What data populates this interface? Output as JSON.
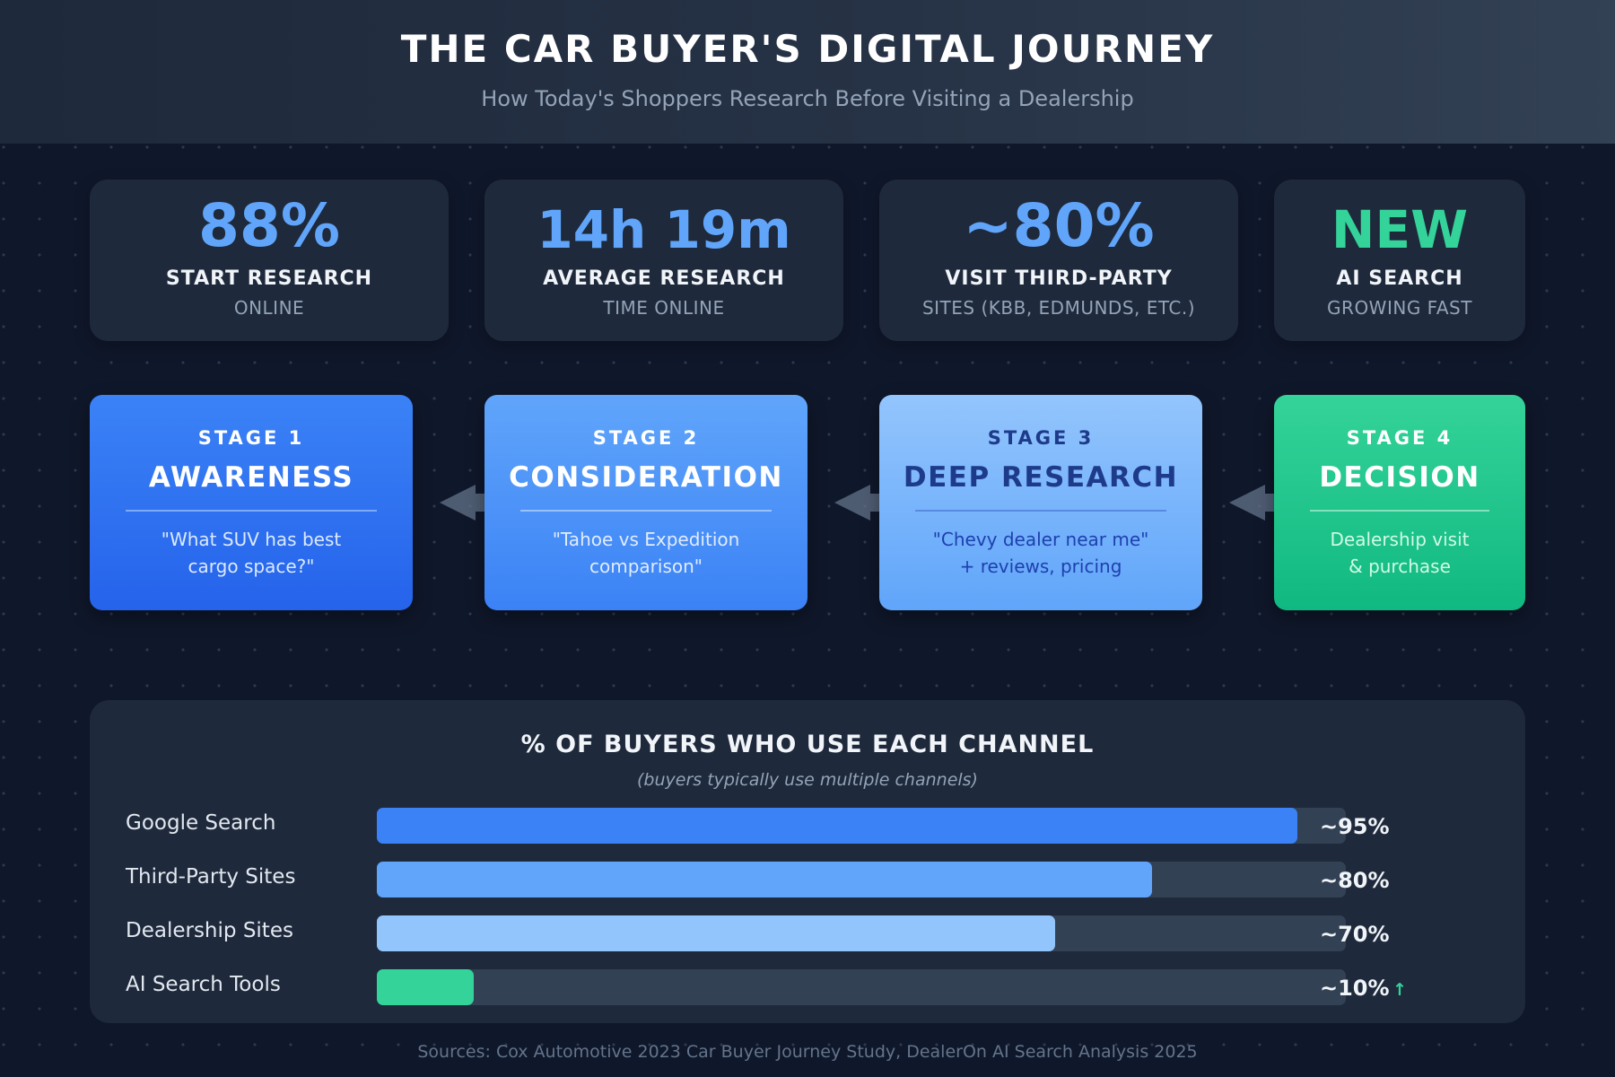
{
  "header": {
    "title": "THE CAR BUYER'S DIGITAL JOURNEY",
    "subtitle": "How Today's Shoppers Research Before Visiting a Dealership"
  },
  "stats": [
    {
      "value": "88%",
      "label": "START RESEARCH",
      "sub": "ONLINE",
      "color": "#60a5fa"
    },
    {
      "value": "14h 19m",
      "label": "AVERAGE RESEARCH",
      "sub": "TIME ONLINE",
      "color": "#60a5fa"
    },
    {
      "value": "~80%",
      "label": "VISIT THIRD-PARTY",
      "sub": "SITES (KBB, EDMUNDS, ETC.)",
      "color": "#60a5fa"
    },
    {
      "value": "NEW",
      "label": "AI SEARCH",
      "sub": "GROWING FAST",
      "color": "#34d399"
    }
  ],
  "stages": [
    {
      "stage": "STAGE 1",
      "name": "AWARENESS",
      "desc_line1": "\"What SUV has best",
      "desc_line2": "cargo space?\""
    },
    {
      "stage": "STAGE 2",
      "name": "CONSIDERATION",
      "desc_line1": "\"Tahoe vs Expedition",
      "desc_line2": "comparison\""
    },
    {
      "stage": "STAGE 3",
      "name": "DEEP RESEARCH",
      "desc_line1": "\"Chevy dealer near me\"",
      "desc_line2": "+ reviews, pricing"
    },
    {
      "stage": "STAGE 4",
      "name": "DECISION",
      "desc_line1": "Dealership visit",
      "desc_line2": "& purchase"
    }
  ],
  "flow_arrow_icon": "arrow-left-icon",
  "chart": {
    "title": "% OF BUYERS WHO USE EACH CHANNEL",
    "subtitle": "(buyers typically use multiple channels)",
    "rows": [
      {
        "label": "Google Search",
        "value_label": "~95%",
        "value": 95,
        "color": "#3b82f6",
        "trend": ""
      },
      {
        "label": "Third-Party Sites",
        "value_label": "~80%",
        "value": 80,
        "color": "#60a5fa",
        "trend": ""
      },
      {
        "label": "Dealership Sites",
        "value_label": "~70%",
        "value": 70,
        "color": "#93c5fd",
        "trend": ""
      },
      {
        "label": "AI Search Tools",
        "value_label": "~10%",
        "value": 10,
        "color": "#34d399",
        "trend": "↑"
      }
    ]
  },
  "chart_data": {
    "type": "bar",
    "orientation": "horizontal",
    "title": "% OF BUYERS WHO USE EACH CHANNEL",
    "subtitle": "(buyers typically use multiple channels)",
    "categories": [
      "Google Search",
      "Third-Party Sites",
      "Dealership Sites",
      "AI Search Tools"
    ],
    "values": [
      95,
      80,
      70,
      10
    ],
    "value_labels": [
      "~95%",
      "~80%",
      "~70%",
      "~10%"
    ],
    "colors": [
      "#3b82f6",
      "#60a5fa",
      "#93c5fd",
      "#34d399"
    ],
    "annotations": [
      "AI Search Tools: upward trend arrow ↑"
    ],
    "xlabel": "",
    "ylabel": "",
    "xlim": [
      0,
      100
    ],
    "grid": false,
    "legend": "none"
  },
  "footer": {
    "sources": "Sources: Cox Automotive 2023 Car Buyer Journey Study, DealerOn AI Search Analysis 2025"
  },
  "colors": {
    "background": "#0f172a",
    "panel": "#1e293b",
    "accent_blue": "#60a5fa",
    "accent_green": "#34d399"
  }
}
